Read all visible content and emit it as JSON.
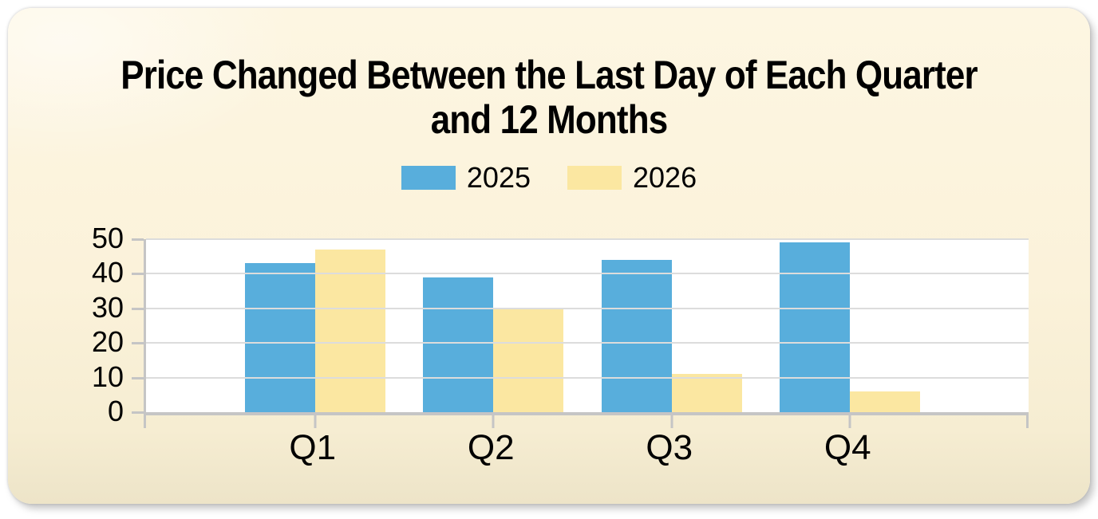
{
  "card": {
    "title": {
      "line1": "Price Changed Between the Last Day of Each Quarter",
      "line2": "and 12 Months"
    }
  },
  "chart_data": {
    "type": "bar",
    "title": "Price Changed Between the Last Day of Each Quarter and 12 Months",
    "categories": [
      "Q1",
      "Q2",
      "Q3",
      "Q4"
    ],
    "series": [
      {
        "name": "2025",
        "color": "#58AEDC",
        "values": [
          43,
          39,
          44,
          49
        ]
      },
      {
        "name": "2026",
        "color": "#FBE7A1",
        "values": [
          47,
          30,
          11,
          6
        ]
      }
    ],
    "xlabel": "",
    "ylabel": "",
    "ylim": [
      0,
      50
    ],
    "yticks": [
      0,
      10,
      20,
      30,
      40,
      50
    ],
    "grid": true,
    "legend_position": "top-center",
    "plot_background": "#FFFFFF",
    "card_background": "#FBF2DA",
    "gridline_color": "#DCDCDC",
    "axis_color": "#C5C5C5",
    "text_color": "#000000"
  }
}
